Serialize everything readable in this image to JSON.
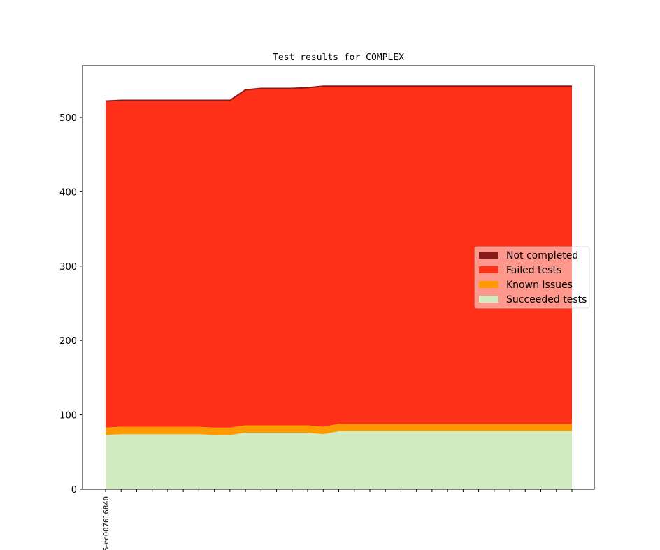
{
  "chart_data": {
    "type": "area",
    "title": "Test results for COMPLEX",
    "xlabel": "",
    "ylabel": "",
    "ylim": [
      0,
      570
    ],
    "yticks": [
      0,
      100,
      200,
      300,
      400,
      500
    ],
    "x_tick_labels": [
      "5-ec007616840"
    ],
    "n_points": 31,
    "legend_position": "center-right",
    "grid": false,
    "series": [
      {
        "name": "Succeeded tests",
        "color": "#d0ecc0",
        "values": [
          73,
          74,
          74,
          74,
          74,
          74,
          74,
          73,
          73,
          76,
          76,
          76,
          76,
          76,
          74,
          78,
          78,
          78,
          78,
          78,
          78,
          78,
          78,
          78,
          78,
          78,
          78,
          78,
          78,
          78,
          78
        ]
      },
      {
        "name": "Known Issues",
        "color": "#ff9900",
        "values": [
          10,
          10,
          10,
          10,
          10,
          10,
          10,
          10,
          10,
          10,
          10,
          10,
          10,
          10,
          10,
          10,
          10,
          10,
          10,
          10,
          10,
          10,
          10,
          10,
          10,
          10,
          10,
          10,
          10,
          10,
          10
        ]
      },
      {
        "name": "Failed tests",
        "color": "#ff3018",
        "values": [
          439,
          439,
          439,
          439,
          439,
          439,
          439,
          440,
          440,
          451,
          453,
          453,
          453,
          454,
          458,
          454,
          454,
          454,
          454,
          454,
          454,
          454,
          454,
          454,
          454,
          454,
          454,
          454,
          454,
          454,
          454
        ]
      },
      {
        "name": "Not completed",
        "color": "#8b1a1a",
        "values": [
          0,
          0,
          0,
          0,
          0,
          0,
          0,
          0,
          0,
          0,
          0,
          0,
          0,
          0,
          0,
          0,
          0,
          0,
          0,
          0,
          0,
          0,
          0,
          0,
          0,
          0,
          0,
          0,
          0,
          0,
          0
        ]
      }
    ],
    "legend_order": [
      "Not completed",
      "Failed tests",
      "Known Issues",
      "Succeeded tests"
    ]
  }
}
